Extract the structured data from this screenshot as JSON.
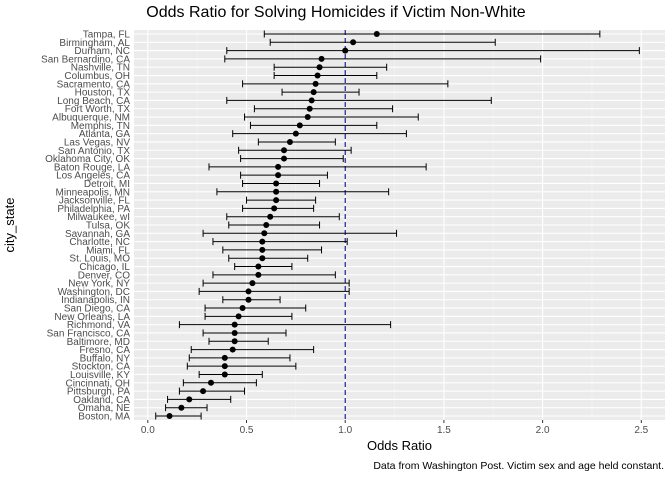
{
  "chart_data": {
    "type": "scatter",
    "title": "Odds Ratio for Solving Homicides if Victim Non-White",
    "xlabel": "Odds Ratio",
    "ylabel": "city_state",
    "caption": "Data from Washington Post. Victim sex and age held constant.",
    "xlim": [
      -0.07,
      2.62
    ],
    "x_ticks": [
      0.0,
      0.5,
      1.0,
      1.5,
      2.0,
      2.5
    ],
    "x_tick_labels": [
      "0.0",
      "0.5",
      "1.0",
      "1.5",
      "2.0",
      "2.5"
    ],
    "reference_line": 1.0,
    "grid": true,
    "series": [
      {
        "points": [
          {
            "city": "Tampa, FL",
            "estimate": 1.16,
            "lower": 0.59,
            "upper": 2.29
          },
          {
            "city": "Birmingham, AL",
            "estimate": 1.04,
            "lower": 0.62,
            "upper": 1.76
          },
          {
            "city": "Durham, NC",
            "estimate": 1.0,
            "lower": 0.4,
            "upper": 2.49
          },
          {
            "city": "San Bernardino, CA",
            "estimate": 0.88,
            "lower": 0.39,
            "upper": 1.99
          },
          {
            "city": "Nashville, TN",
            "estimate": 0.87,
            "lower": 0.64,
            "upper": 1.21
          },
          {
            "city": "Columbus, OH",
            "estimate": 0.86,
            "lower": 0.64,
            "upper": 1.16
          },
          {
            "city": "Sacramento, CA",
            "estimate": 0.85,
            "lower": 0.48,
            "upper": 1.52
          },
          {
            "city": "Houston, TX",
            "estimate": 0.84,
            "lower": 0.68,
            "upper": 1.07
          },
          {
            "city": "Long Beach, CA",
            "estimate": 0.83,
            "lower": 0.4,
            "upper": 1.74
          },
          {
            "city": "Fort Worth, TX",
            "estimate": 0.82,
            "lower": 0.54,
            "upper": 1.24
          },
          {
            "city": "Albuquerque, NM",
            "estimate": 0.81,
            "lower": 0.49,
            "upper": 1.37
          },
          {
            "city": "Memphis, TN",
            "estimate": 0.77,
            "lower": 0.52,
            "upper": 1.16
          },
          {
            "city": "Atlanta, GA",
            "estimate": 0.75,
            "lower": 0.43,
            "upper": 1.31
          },
          {
            "city": "Las Vegas, NV",
            "estimate": 0.72,
            "lower": 0.56,
            "upper": 0.95
          },
          {
            "city": "San Antonio, TX",
            "estimate": 0.69,
            "lower": 0.46,
            "upper": 1.03
          },
          {
            "city": "Oklahoma City, OK",
            "estimate": 0.69,
            "lower": 0.47,
            "upper": 0.99
          },
          {
            "city": "Baton Rouge, LA",
            "estimate": 0.66,
            "lower": 0.31,
            "upper": 1.41
          },
          {
            "city": "Los Angeles, CA",
            "estimate": 0.66,
            "lower": 0.47,
            "upper": 0.91
          },
          {
            "city": "Detroit, MI",
            "estimate": 0.65,
            "lower": 0.48,
            "upper": 0.87
          },
          {
            "city": "Minneapolis, MN",
            "estimate": 0.65,
            "lower": 0.35,
            "upper": 1.22
          },
          {
            "city": "Jacksonville, FL",
            "estimate": 0.65,
            "lower": 0.5,
            "upper": 0.85
          },
          {
            "city": "Philadelphia, PA",
            "estimate": 0.64,
            "lower": 0.48,
            "upper": 0.84
          },
          {
            "city": "Milwaukee, wI",
            "estimate": 0.62,
            "lower": 0.4,
            "upper": 0.97
          },
          {
            "city": "Tulsa, OK",
            "estimate": 0.6,
            "lower": 0.41,
            "upper": 0.87
          },
          {
            "city": "Savannah, GA",
            "estimate": 0.59,
            "lower": 0.28,
            "upper": 1.26
          },
          {
            "city": "Charlotte, NC",
            "estimate": 0.58,
            "lower": 0.33,
            "upper": 1.01
          },
          {
            "city": "Miami, FL",
            "estimate": 0.58,
            "lower": 0.38,
            "upper": 0.88
          },
          {
            "city": "St. Louis, MO",
            "estimate": 0.58,
            "lower": 0.41,
            "upper": 0.81
          },
          {
            "city": "Chicago, IL",
            "estimate": 0.56,
            "lower": 0.44,
            "upper": 0.73
          },
          {
            "city": "Denver, CO",
            "estimate": 0.56,
            "lower": 0.33,
            "upper": 0.95
          },
          {
            "city": "New York, NY",
            "estimate": 0.53,
            "lower": 0.28,
            "upper": 1.02
          },
          {
            "city": "Washington, DC",
            "estimate": 0.51,
            "lower": 0.26,
            "upper": 1.02
          },
          {
            "city": "Indianapolis, IN",
            "estimate": 0.51,
            "lower": 0.38,
            "upper": 0.67
          },
          {
            "city": "San Diego, CA",
            "estimate": 0.48,
            "lower": 0.29,
            "upper": 0.8
          },
          {
            "city": "New Orleans, LA",
            "estimate": 0.46,
            "lower": 0.29,
            "upper": 0.73
          },
          {
            "city": "Richmond, VA",
            "estimate": 0.44,
            "lower": 0.16,
            "upper": 1.23
          },
          {
            "city": "San Francisco, CA",
            "estimate": 0.44,
            "lower": 0.28,
            "upper": 0.7
          },
          {
            "city": "Baltimore, MD",
            "estimate": 0.44,
            "lower": 0.31,
            "upper": 0.61
          },
          {
            "city": "Fresno, CA",
            "estimate": 0.43,
            "lower": 0.22,
            "upper": 0.84
          },
          {
            "city": "Buffalo, NY",
            "estimate": 0.39,
            "lower": 0.21,
            "upper": 0.72
          },
          {
            "city": "Stockton, CA",
            "estimate": 0.39,
            "lower": 0.2,
            "upper": 0.75
          },
          {
            "city": "Louisville, KY",
            "estimate": 0.39,
            "lower": 0.26,
            "upper": 0.58
          },
          {
            "city": "Cincinnati, OH",
            "estimate": 0.32,
            "lower": 0.18,
            "upper": 0.55
          },
          {
            "city": "Pittsburgh, PA",
            "estimate": 0.28,
            "lower": 0.16,
            "upper": 0.49
          },
          {
            "city": "Oakland, CA",
            "estimate": 0.21,
            "lower": 0.1,
            "upper": 0.42
          },
          {
            "city": "Omaha, NE",
            "estimate": 0.17,
            "lower": 0.09,
            "upper": 0.3
          },
          {
            "city": "Boston, MA",
            "estimate": 0.11,
            "lower": 0.04,
            "upper": 0.27
          }
        ]
      }
    ],
    "colors": {
      "panel_background": "#ebebeb",
      "grid_major": "#ffffff",
      "grid_minor": "#f5f5f5",
      "points": "#000000",
      "errorbars": "#000000",
      "reference_line": "#0000cc",
      "tick_text": "#4d4d4d"
    }
  }
}
